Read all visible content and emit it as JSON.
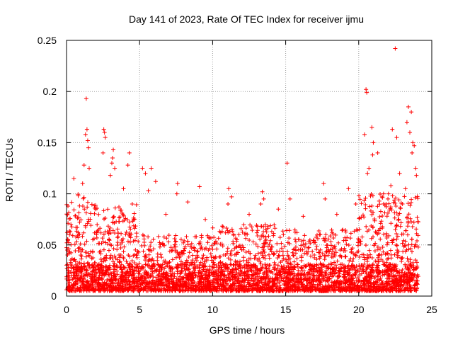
{
  "chart_data": {
    "type": "scatter",
    "title": "Day 141 of 2023, Rate Of TEC Index for receiver ijmu",
    "xlabel": "GPS time / hours",
    "ylabel": "ROTI / TECUs",
    "xlim": [
      0,
      25
    ],
    "ylim": [
      0,
      0.25
    ],
    "xticks": [
      "0",
      "5",
      "10",
      "15",
      "20",
      "25"
    ],
    "yticks": [
      "0",
      "0.05",
      "0.1",
      "0.15",
      "0.2",
      "0.25"
    ],
    "grid": true,
    "marker": "+",
    "series": [
      {
        "name": "ROTI",
        "color": "#ff0000",
        "points": [
          [
            1.35,
            0.193
          ],
          [
            1.4,
            0.163
          ],
          [
            1.3,
            0.158
          ],
          [
            1.45,
            0.152
          ],
          [
            1.5,
            0.145
          ],
          [
            1.2,
            0.128
          ],
          [
            1.55,
            0.125
          ],
          [
            0.5,
            0.115
          ],
          [
            1.1,
            0.11
          ],
          [
            0.8,
            0.098
          ],
          [
            2.55,
            0.163
          ],
          [
            2.6,
            0.16
          ],
          [
            2.65,
            0.155
          ],
          [
            2.5,
            0.14
          ],
          [
            3.2,
            0.143
          ],
          [
            3.15,
            0.135
          ],
          [
            3.1,
            0.13
          ],
          [
            3.3,
            0.125
          ],
          [
            3.0,
            0.118
          ],
          [
            4.3,
            0.14
          ],
          [
            4.2,
            0.128
          ],
          [
            3.9,
            0.105
          ],
          [
            5.2,
            0.125
          ],
          [
            5.4,
            0.12
          ],
          [
            5.8,
            0.125
          ],
          [
            6.1,
            0.112
          ],
          [
            5.6,
            0.103
          ],
          [
            7.6,
            0.11
          ],
          [
            7.55,
            0.1
          ],
          [
            9.1,
            0.107
          ],
          [
            8.3,
            0.092
          ],
          [
            11.1,
            0.105
          ],
          [
            11.3,
            0.097
          ],
          [
            11.05,
            0.09
          ],
          [
            13.4,
            0.102
          ],
          [
            13.5,
            0.095
          ],
          [
            13.3,
            0.09
          ],
          [
            15.1,
            0.13
          ],
          [
            15.3,
            0.095
          ],
          [
            17.6,
            0.11
          ],
          [
            17.7,
            0.095
          ],
          [
            19.3,
            0.105
          ],
          [
            20.5,
            0.202
          ],
          [
            20.55,
            0.199
          ],
          [
            20.4,
            0.158
          ],
          [
            20.9,
            0.165
          ],
          [
            21.0,
            0.15
          ],
          [
            20.95,
            0.138
          ],
          [
            21.3,
            0.14
          ],
          [
            20.7,
            0.125
          ],
          [
            20.6,
            0.12
          ],
          [
            22.5,
            0.242
          ],
          [
            22.3,
            0.163
          ],
          [
            22.6,
            0.155
          ],
          [
            23.4,
            0.185
          ],
          [
            23.6,
            0.18
          ],
          [
            23.3,
            0.17
          ],
          [
            23.5,
            0.16
          ],
          [
            23.7,
            0.15
          ],
          [
            23.8,
            0.147
          ],
          [
            23.65,
            0.14
          ],
          [
            23.9,
            0.125
          ],
          [
            23.95,
            0.118
          ],
          [
            22.8,
            0.12
          ],
          [
            22.2,
            0.108
          ],
          [
            23.2,
            0.105
          ],
          [
            21.7,
            0.1
          ],
          [
            22.0,
            0.095
          ],
          [
            0.2,
            0.06
          ],
          [
            0.3,
            0.07
          ],
          [
            0.1,
            0.055
          ],
          [
            0.05,
            0.045
          ],
          [
            2.0,
            0.085
          ],
          [
            4.5,
            0.09
          ],
          [
            6.8,
            0.08
          ],
          [
            9.5,
            0.075
          ],
          [
            12.5,
            0.08
          ],
          [
            14.5,
            0.085
          ],
          [
            16.2,
            0.078
          ],
          [
            18.5,
            0.08
          ],
          [
            19.8,
            0.09
          ]
        ]
      }
    ],
    "dense_bands": [
      {
        "x_range": [
          0,
          1.5
        ],
        "y_range": [
          0.005,
          0.1
        ],
        "density": 0.9
      },
      {
        "x_range": [
          1.5,
          4.8
        ],
        "y_range": [
          0.005,
          0.09
        ],
        "density": 0.85
      },
      {
        "x_range": [
          4.8,
          10
        ],
        "y_range": [
          0.005,
          0.06
        ],
        "density": 0.7
      },
      {
        "x_range": [
          10,
          15
        ],
        "y_range": [
          0.005,
          0.07
        ],
        "density": 0.75
      },
      {
        "x_range": [
          15,
          20
        ],
        "y_range": [
          0.005,
          0.065
        ],
        "density": 0.75
      },
      {
        "x_range": [
          20,
          24.1
        ],
        "y_range": [
          0.005,
          0.1
        ],
        "density": 0.9
      }
    ]
  }
}
